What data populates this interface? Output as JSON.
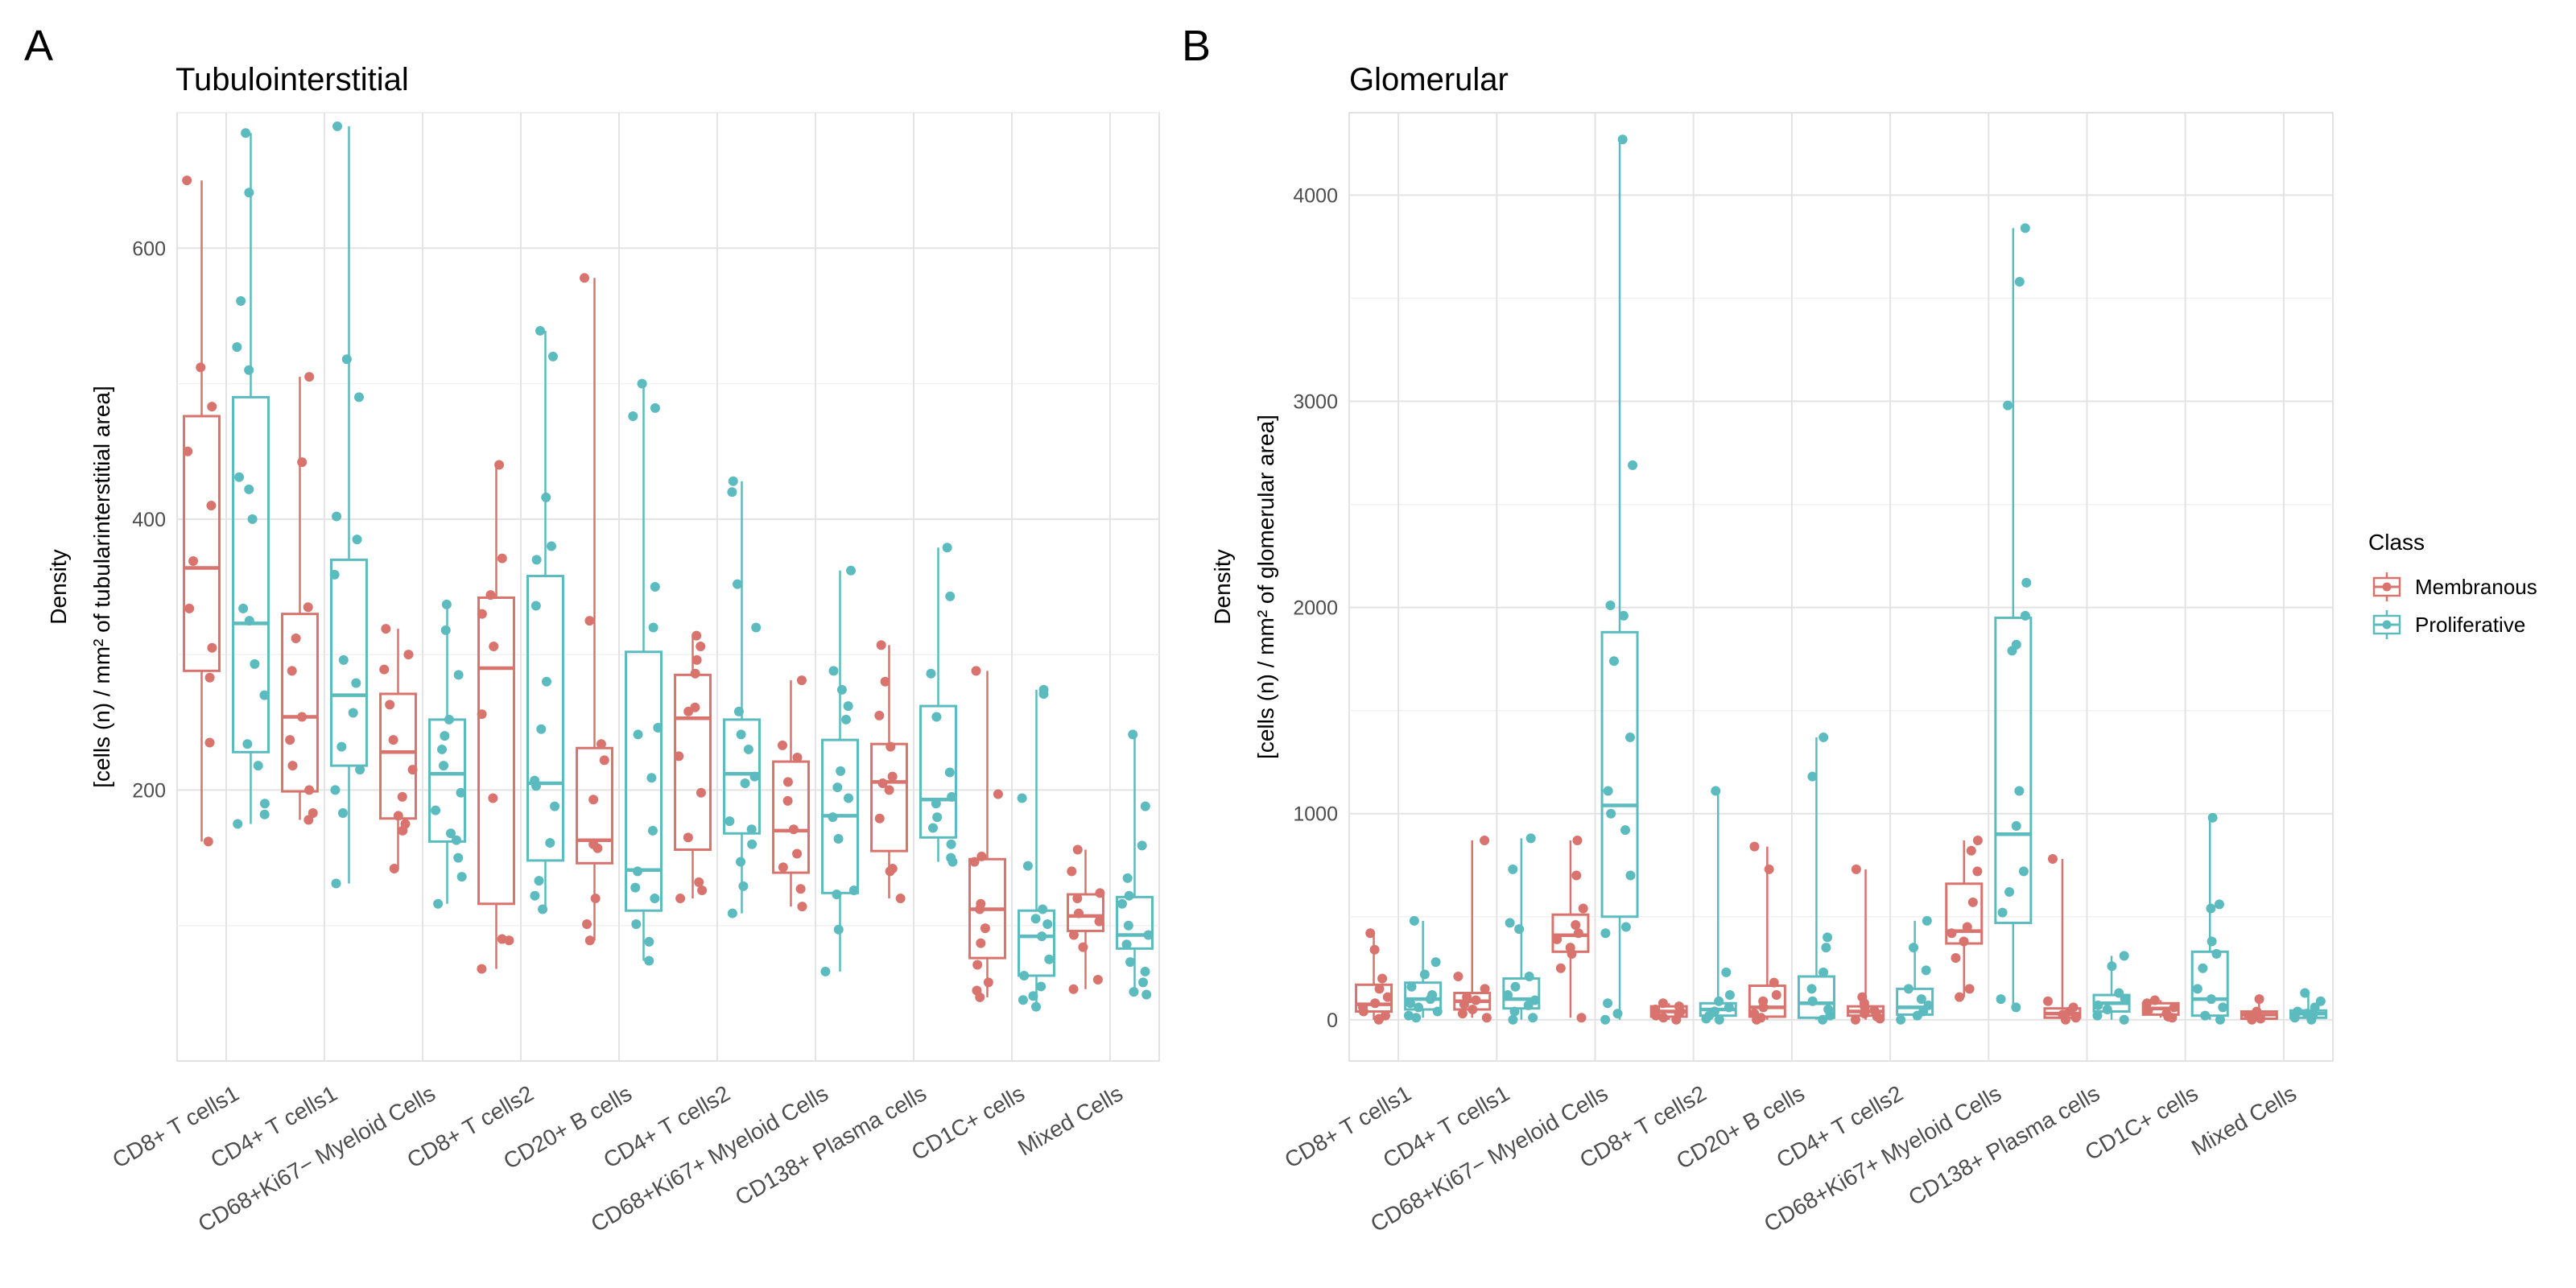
{
  "panel_letters": [
    "A",
    "B"
  ],
  "legend": {
    "title": "Class",
    "items": [
      {
        "label": "Membranous",
        "color": "#D9736E"
      },
      {
        "label": "Proliferative",
        "color": "#5BBBBE"
      }
    ]
  },
  "chart_data": [
    {
      "type": "box",
      "title": "Tubulointerstitial",
      "ylabel_line1": "Density",
      "ylabel_line2": "[cells (n) / mm² of tubularinterstitial area]",
      "ylim": [
        0,
        700
      ],
      "yticks": [
        200,
        400,
        600
      ],
      "grid": true,
      "categories": [
        "CD8+ T cells1",
        "CD4+ T cells1",
        "CD68+Ki67− Myeloid Cells",
        "CD8+ T cells2",
        "CD20+ B cells",
        "CD4+ T cells2",
        "CD68+Ki67+ Myeloid Cells",
        "CD138+ Plasma cells",
        "CD1C+ cells",
        "Mixed Cells"
      ],
      "series": [
        {
          "name": "Membranous",
          "color": "#D9736E",
          "boxes": [
            {
              "min": 162,
              "q1": 288,
              "median": 364,
              "q3": 476,
              "max": 650,
              "points": [
                650,
                512,
                483,
                450,
                410,
                369,
                334,
                305,
                283,
                235,
                162
              ]
            },
            {
              "min": 178,
              "q1": 199,
              "median": 254,
              "q3": 330,
              "max": 505,
              "points": [
                505,
                442,
                335,
                312,
                288,
                254,
                237,
                218,
                200,
                183,
                178
              ]
            },
            {
              "min": 142,
              "q1": 179,
              "median": 228,
              "q3": 271,
              "max": 319,
              "points": [
                319,
                300,
                289,
                263,
                237,
                215,
                195,
                181,
                175,
                170,
                142
              ]
            },
            {
              "min": 68,
              "q1": 116,
              "median": 290,
              "q3": 342,
              "max": 440,
              "points": [
                440,
                371,
                344,
                330,
                306,
                256,
                194,
                90,
                89,
                68
              ]
            },
            {
              "min": 89,
              "q1": 146,
              "median": 163,
              "q3": 231,
              "max": 578,
              "points": [
                578,
                325,
                234,
                222,
                193,
                160,
                157,
                120,
                101,
                89
              ]
            },
            {
              "min": 120,
              "q1": 156,
              "median": 253,
              "q3": 285,
              "max": 314,
              "points": [
                314,
                306,
                296,
                286,
                261,
                258,
                225,
                198,
                165,
                132,
                126,
                120
              ]
            },
            {
              "min": 114,
              "q1": 139,
              "median": 170,
              "q3": 221,
              "max": 281,
              "points": [
                281,
                233,
                224,
                206,
                192,
                171,
                153,
                143,
                127,
                114
              ]
            },
            {
              "min": 120,
              "q1": 155,
              "median": 206,
              "q3": 234,
              "max": 307,
              "points": [
                307,
                280,
                255,
                232,
                210,
                205,
                200,
                179,
                142,
                140,
                120
              ]
            },
            {
              "min": 47,
              "q1": 76,
              "median": 112,
              "q3": 149,
              "max": 288,
              "points": [
                288,
                197,
                151,
                147,
                116,
                112,
                98,
                87,
                71,
                58,
                52,
                47
              ]
            },
            {
              "min": 53,
              "q1": 96,
              "median": 107,
              "q3": 123,
              "max": 156,
              "points": [
                156,
                140,
                124,
                120,
                109,
                103,
                93,
                84,
                60,
                53
              ]
            }
          ]
        },
        {
          "name": "Proliferative",
          "color": "#5BBBBE",
          "boxes": [
            {
              "min": 175,
              "q1": 228,
              "median": 323,
              "q3": 490,
              "max": 685,
              "points": [
                685,
                641,
                561,
                527,
                510,
                431,
                422,
                400,
                334,
                325,
                293,
                270,
                234,
                218,
                190,
                182,
                175
              ]
            },
            {
              "min": 131,
              "q1": 218,
              "median": 270,
              "q3": 370,
              "max": 690,
              "points": [
                690,
                518,
                490,
                402,
                385,
                359,
                296,
                279,
                257,
                232,
                215,
                200,
                183,
                131
              ]
            },
            {
              "min": 116,
              "q1": 162,
              "median": 212,
              "q3": 252,
              "max": 337,
              "points": [
                337,
                318,
                285,
                252,
                240,
                230,
                218,
                198,
                185,
                168,
                163,
                150,
                136,
                116
              ]
            },
            {
              "min": 112,
              "q1": 148,
              "median": 205,
              "q3": 358,
              "max": 539,
              "points": [
                539,
                520,
                416,
                380,
                370,
                336,
                280,
                245,
                207,
                203,
                188,
                161,
                133,
                122,
                112
              ]
            },
            {
              "min": 74,
              "q1": 111,
              "median": 141,
              "q3": 302,
              "max": 500,
              "points": [
                500,
                482,
                476,
                350,
                320,
                246,
                241,
                209,
                170,
                140,
                128,
                120,
                101,
                88,
                74
              ]
            },
            {
              "min": 109,
              "q1": 168,
              "median": 212,
              "q3": 252,
              "max": 428,
              "points": [
                428,
                420,
                352,
                320,
                258,
                241,
                230,
                210,
                205,
                177,
                171,
                160,
                147,
                129,
                109
              ]
            },
            {
              "min": 66,
              "q1": 124,
              "median": 181,
              "q3": 237,
              "max": 362,
              "points": [
                362,
                288,
                274,
                262,
                252,
                214,
                202,
                194,
                180,
                164,
                126,
                123,
                97,
                66
              ]
            },
            {
              "min": 147,
              "q1": 165,
              "median": 193,
              "q3": 262,
              "max": 379,
              "points": [
                379,
                343,
                286,
                254,
                213,
                195,
                190,
                180,
                172,
                160,
                150,
                147
              ]
            },
            {
              "min": 40,
              "q1": 63,
              "median": 92,
              "q3": 111,
              "max": 274,
              "points": [
                274,
                271,
                194,
                144,
                112,
                105,
                101,
                92,
                75,
                63,
                55,
                48,
                45,
                40
              ]
            },
            {
              "min": 49,
              "q1": 83,
              "median": 93,
              "q3": 121,
              "max": 241,
              "points": [
                241,
                188,
                159,
                135,
                122,
                116,
                100,
                93,
                86,
                73,
                66,
                58,
                51,
                49
              ]
            }
          ]
        }
      ]
    },
    {
      "type": "box",
      "title": "Glomerular",
      "ylabel_line1": "Density",
      "ylabel_line2": "[cells (n) / mm² of glomerular area]",
      "ylim": [
        -200,
        4400
      ],
      "yticks": [
        0,
        1000,
        2000,
        3000,
        4000
      ],
      "grid": true,
      "categories": [
        "CD8+ T cells1",
        "CD4+ T cells1",
        "CD68+Ki67− Myeloid Cells",
        "CD8+ T cells2",
        "CD20+ B cells",
        "CD4+ T cells2",
        "CD68+Ki67+ Myeloid Cells",
        "CD138+ Plasma cells",
        "CD1C+ cells",
        "Mixed Cells"
      ],
      "series": [
        {
          "name": "Membranous",
          "color": "#D9736E",
          "boxes": [
            {
              "min": 0,
              "q1": 40,
              "median": 75,
              "q3": 170,
              "max": 420,
              "points": [
                420,
                340,
                200,
                150,
                110,
                80,
                60,
                40,
                20,
                5,
                0
              ]
            },
            {
              "min": 10,
              "q1": 50,
              "median": 90,
              "q3": 130,
              "max": 870,
              "points": [
                870,
                210,
                150,
                110,
                95,
                75,
                50,
                30,
                10
              ]
            },
            {
              "min": 10,
              "q1": 330,
              "median": 410,
              "q3": 510,
              "max": 870,
              "points": [
                870,
                700,
                540,
                460,
                420,
                390,
                350,
                320,
                250,
                10
              ]
            },
            {
              "min": 0,
              "q1": 15,
              "median": 40,
              "q3": 65,
              "max": 80,
              "points": [
                80,
                65,
                50,
                40,
                30,
                20,
                10,
                0
              ]
            },
            {
              "min": 0,
              "q1": 15,
              "median": 60,
              "q3": 165,
              "max": 840,
              "points": [
                840,
                730,
                180,
                120,
                90,
                60,
                30,
                10,
                0
              ]
            },
            {
              "min": 0,
              "q1": 20,
              "median": 40,
              "q3": 65,
              "max": 730,
              "points": [
                730,
                110,
                80,
                60,
                45,
                30,
                15,
                5,
                0
              ]
            },
            {
              "min": 110,
              "q1": 370,
              "median": 430,
              "q3": 660,
              "max": 870,
              "points": [
                870,
                820,
                720,
                570,
                450,
                420,
                380,
                300,
                150,
                110
              ]
            },
            {
              "min": 0,
              "q1": 10,
              "median": 30,
              "q3": 55,
              "max": 780,
              "points": [
                780,
                90,
                60,
                40,
                25,
                10,
                0
              ]
            },
            {
              "min": 10,
              "q1": 25,
              "median": 55,
              "q3": 80,
              "max": 95,
              "points": [
                95,
                80,
                60,
                45,
                30,
                15,
                10
              ]
            },
            {
              "min": 0,
              "q1": 5,
              "median": 25,
              "q3": 40,
              "max": 100,
              "points": [
                100,
                40,
                30,
                20,
                10,
                5,
                0
              ]
            }
          ]
        },
        {
          "name": "Proliferative",
          "color": "#5BBBBE",
          "boxes": [
            {
              "min": 10,
              "q1": 50,
              "median": 100,
              "q3": 180,
              "max": 480,
              "points": [
                480,
                280,
                220,
                160,
                120,
                100,
                80,
                60,
                40,
                20,
                10
              ]
            },
            {
              "min": 0,
              "q1": 55,
              "median": 100,
              "q3": 200,
              "max": 880,
              "points": [
                880,
                730,
                470,
                440,
                210,
                160,
                120,
                95,
                70,
                40,
                10,
                0
              ]
            },
            {
              "min": 0,
              "q1": 500,
              "median": 1040,
              "q3": 1880,
              "max": 4270,
              "points": [
                4270,
                2690,
                2010,
                1960,
                1740,
                1370,
                1110,
                1000,
                920,
                700,
                450,
                420,
                80,
                30,
                0
              ]
            },
            {
              "min": 0,
              "q1": 20,
              "median": 50,
              "q3": 80,
              "max": 1110,
              "points": [
                1110,
                230,
                120,
                90,
                60,
                40,
                20,
                5,
                0
              ]
            },
            {
              "min": 0,
              "q1": 10,
              "median": 80,
              "q3": 210,
              "max": 1370,
              "points": [
                1370,
                1180,
                400,
                350,
                230,
                150,
                90,
                50,
                20,
                0
              ]
            },
            {
              "min": 0,
              "q1": 25,
              "median": 60,
              "q3": 150,
              "max": 480,
              "points": [
                480,
                350,
                240,
                150,
                100,
                70,
                40,
                20,
                0
              ]
            },
            {
              "min": 60,
              "q1": 470,
              "median": 900,
              "q3": 1950,
              "max": 3840,
              "points": [
                3840,
                3580,
                2980,
                2120,
                1960,
                1820,
                1790,
                1110,
                940,
                720,
                620,
                520,
                100,
                60
              ]
            },
            {
              "min": 0,
              "q1": 40,
              "median": 80,
              "q3": 120,
              "max": 310,
              "points": [
                310,
                260,
                130,
                100,
                70,
                50,
                20,
                0
              ]
            },
            {
              "min": 0,
              "q1": 20,
              "median": 100,
              "q3": 330,
              "max": 980,
              "points": [
                980,
                560,
                540,
                380,
                320,
                250,
                150,
                100,
                60,
                20,
                0
              ]
            },
            {
              "min": 0,
              "q1": 10,
              "median": 30,
              "q3": 45,
              "max": 130,
              "points": [
                130,
                90,
                60,
                40,
                30,
                20,
                10,
                0
              ]
            }
          ]
        }
      ]
    }
  ]
}
